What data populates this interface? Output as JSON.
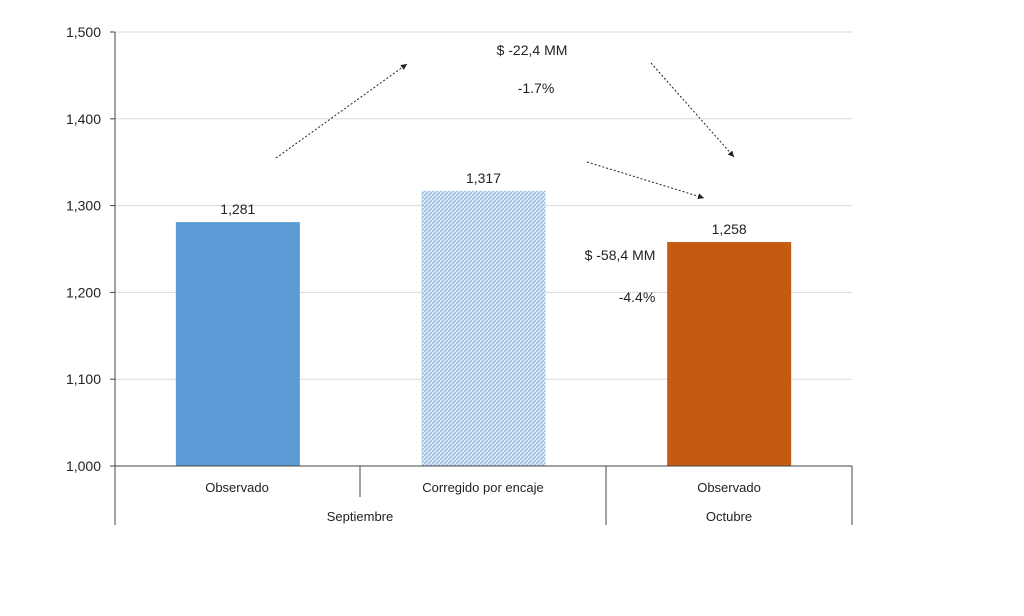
{
  "chart_data": {
    "type": "bar",
    "title": "",
    "xlabel": "",
    "ylabel": "",
    "ylim": [
      1000,
      1500
    ],
    "yticks": [
      "1,000",
      "1,100",
      "1,200",
      "1,300",
      "1,400",
      "1,500"
    ],
    "ytick_values": [
      1000,
      1100,
      1200,
      1300,
      1400,
      1500
    ],
    "grid": true,
    "legend": "none",
    "categories": [
      "Observado",
      "Corregido por encaje",
      "Observado"
    ],
    "groups": [
      "Septiembre",
      "Octubre"
    ],
    "values": [
      1281,
      1317,
      1258
    ],
    "value_labels": [
      "1,281",
      "1,317",
      "1,258"
    ],
    "colors": [
      "#5b9bd5",
      "#b9d3ee",
      "#c55a11"
    ],
    "fill_styles": [
      "solid",
      "hatched",
      "solid"
    ],
    "annotations": {
      "top_amount": "$ -22,4 MM",
      "top_pct": "-1.7%",
      "side_amount": "$ -58,4 MM",
      "side_pct": "-4.4%"
    }
  }
}
